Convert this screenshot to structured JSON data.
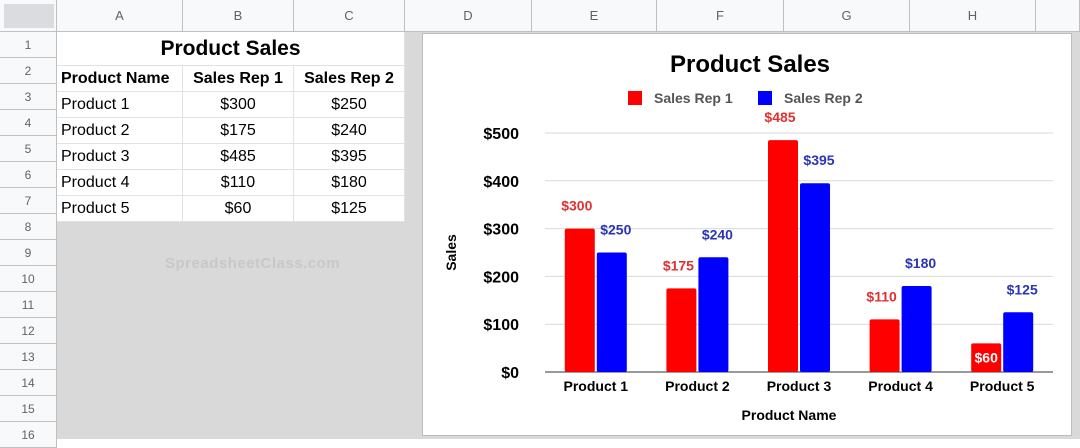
{
  "columns": [
    "A",
    "B",
    "C",
    "D",
    "E",
    "F",
    "G",
    "H"
  ],
  "rows": [
    "1",
    "2",
    "3",
    "4",
    "5",
    "6",
    "7",
    "8",
    "9",
    "10",
    "11",
    "12",
    "13",
    "14",
    "15",
    "16"
  ],
  "table": {
    "title": "Product Sales",
    "headers": [
      "Product Name",
      "Sales Rep 1",
      "Sales Rep 2"
    ],
    "rows": [
      [
        "Product 1",
        "$300",
        "$250"
      ],
      [
        "Product 2",
        "$175",
        "$240"
      ],
      [
        "Product 3",
        "$485",
        "$395"
      ],
      [
        "Product 4",
        "$110",
        "$180"
      ],
      [
        "Product 5",
        "$60",
        "$125"
      ]
    ]
  },
  "watermark": "SpreadsheetClass.com",
  "chart_data": {
    "type": "bar",
    "title": "Product Sales",
    "xlabel": "Product Name",
    "ylabel": "Sales",
    "categories": [
      "Product 1",
      "Product 2",
      "Product 3",
      "Product 4",
      "Product 5"
    ],
    "series": [
      {
        "name": "Sales Rep 1",
        "color": "#ff0000",
        "values": [
          300,
          175,
          485,
          110,
          60
        ],
        "labels": [
          "$300",
          "$175",
          "$485",
          "$110",
          "$60"
        ]
      },
      {
        "name": "Sales Rep 2",
        "color": "#0000ff",
        "values": [
          250,
          240,
          395,
          180,
          125
        ],
        "labels": [
          "$250",
          "$240",
          "$395",
          "$180",
          "$125"
        ]
      }
    ],
    "ylim": [
      0,
      500
    ],
    "yticks": [
      0,
      100,
      200,
      300,
      400,
      500
    ],
    "ytick_labels": [
      "$0",
      "$100",
      "$200",
      "$300",
      "$400",
      "$500"
    ],
    "grid": true,
    "legend": "top",
    "label_color_rep1": "#e03131",
    "label_color_rep2": "#2a35b5"
  }
}
